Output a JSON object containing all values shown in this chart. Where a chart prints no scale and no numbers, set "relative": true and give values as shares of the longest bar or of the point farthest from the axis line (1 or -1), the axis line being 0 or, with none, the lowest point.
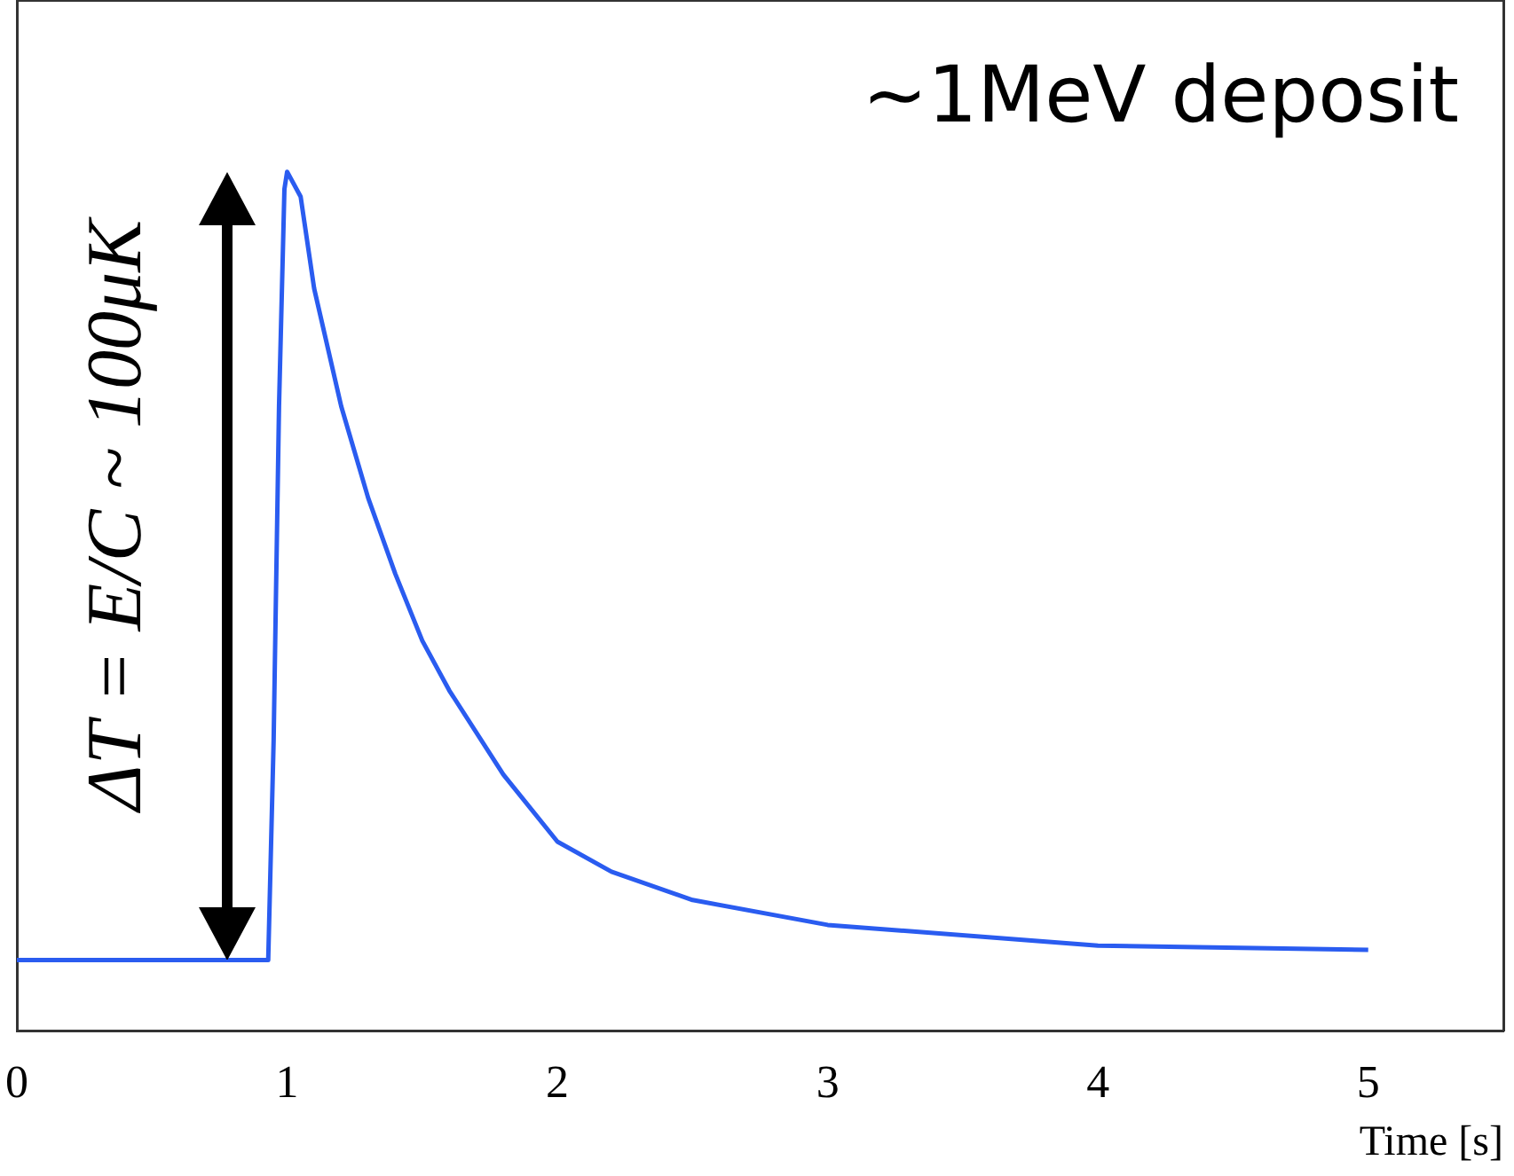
{
  "chart_data": {
    "type": "line",
    "relative": true,
    "xlabel": "Time [s]",
    "annotations": [
      "~1MeV deposit",
      "ΔT = E/C ~ 100μK"
    ],
    "x": [
      0,
      0.5,
      0.93,
      0.95,
      0.97,
      0.99,
      1.0,
      1.05,
      1.1,
      1.2,
      1.3,
      1.4,
      1.5,
      1.6,
      1.8,
      2.0,
      2.2,
      2.5,
      3.0,
      4.0,
      5.0
    ],
    "series": [
      {
        "color": "#2a5cf0",
        "values": [
          0.082,
          0.082,
          0.082,
          0.337,
          0.727,
          0.98,
          1,
          0.971,
          0.864,
          0.727,
          0.62,
          0.532,
          0.454,
          0.396,
          0.298,
          0.22,
          0.185,
          0.152,
          0.123,
          0.099,
          0.094
        ]
      }
    ],
    "xlim": [
      0,
      5.5
    ],
    "xticks": [
      0,
      1,
      2,
      3,
      4,
      5
    ],
    "tick_labels": "x",
    "grid": false,
    "legend": false,
    "marker": "none",
    "line_style": "solid"
  }
}
